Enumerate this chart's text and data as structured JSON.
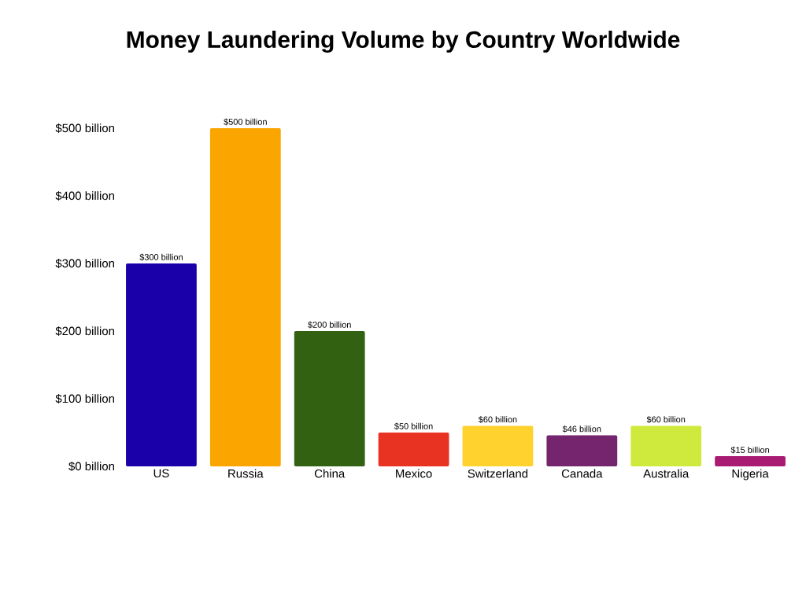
{
  "chart_data": {
    "type": "bar",
    "title": "Money Laundering Volume by Country Worldwide",
    "categories": [
      "US",
      "Russia",
      "China",
      "Mexico",
      "Switzerland",
      "Canada",
      "Australia",
      "Nigeria"
    ],
    "values": [
      300,
      500,
      200,
      50,
      60,
      46,
      60,
      15
    ],
    "colors": [
      "#1a00a8",
      "#fba500",
      "#336112",
      "#e83222",
      "#ffd22e",
      "#75246e",
      "#cfea3c",
      "#a81c74"
    ],
    "value_labels": [
      "$300 billion",
      "$500 billion",
      "$200 billion",
      "$50 billion",
      "$60 billion",
      "$46 billion",
      "$60 billion",
      "$15 billion"
    ],
    "ylim": [
      0,
      500
    ],
    "yticks": [
      {
        "value": 0,
        "label": "$0 billion"
      },
      {
        "value": 100,
        "label": "$100 billion"
      },
      {
        "value": 200,
        "label": "$200 billion"
      },
      {
        "value": 300,
        "label": "$300 billion"
      },
      {
        "value": 400,
        "label": "$400 billion"
      },
      {
        "value": 500,
        "label": "$500 billion"
      }
    ]
  }
}
